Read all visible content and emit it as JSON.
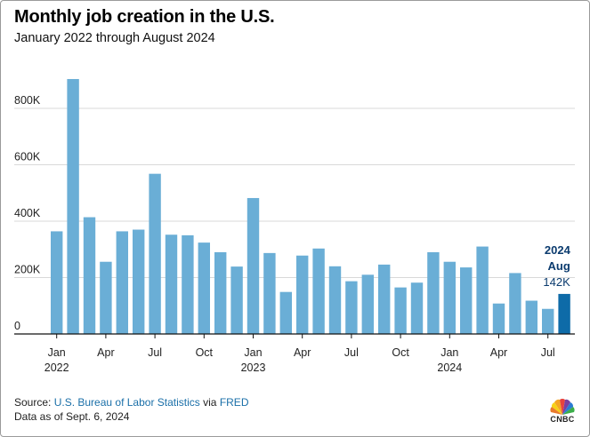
{
  "header": {
    "title": "Monthly job creation in the U.S.",
    "subtitle": "January 2022 through August 2024"
  },
  "footer": {
    "source_prefix": "Source: ",
    "source_bls": "U.S. Bureau of Labor Statistics",
    "source_via": " via ",
    "source_fred": "FRED",
    "data_as_of": "Data as of Sept. 6, 2024",
    "logo_text": "CNBC"
  },
  "colors": {
    "bar": "#6aaed6",
    "highlight": "#0e6ba8",
    "grid": "#d9d9d9",
    "link": "#1a6fa8"
  },
  "chart_data": {
    "type": "bar",
    "unit": "jobs (thousands)",
    "ylim": [
      0,
      900
    ],
    "yticks": [
      0,
      200,
      400,
      600,
      800
    ],
    "ytick_labels": [
      "0",
      "200K",
      "400K",
      "600K",
      "800K"
    ],
    "grid": true,
    "categories": [
      "2022-01",
      "2022-02",
      "2022-03",
      "2022-04",
      "2022-05",
      "2022-06",
      "2022-07",
      "2022-08",
      "2022-09",
      "2022-10",
      "2022-11",
      "2022-12",
      "2023-01",
      "2023-02",
      "2023-03",
      "2023-04",
      "2023-05",
      "2023-06",
      "2023-07",
      "2023-08",
      "2023-09",
      "2023-10",
      "2023-11",
      "2023-12",
      "2024-01",
      "2024-02",
      "2024-03",
      "2024-04",
      "2024-05",
      "2024-06",
      "2024-07",
      "2024-08"
    ],
    "values": [
      364,
      904,
      414,
      256,
      364,
      370,
      568,
      352,
      350,
      324,
      290,
      239,
      482,
      287,
      149,
      278,
      303,
      240,
      187,
      210,
      246,
      165,
      182,
      290,
      256,
      236,
      310,
      108,
      216,
      118,
      89,
      142
    ],
    "x_tick_labels": [
      {
        "index": 0,
        "month": "Jan",
        "year": "2022"
      },
      {
        "index": 3,
        "month": "Apr"
      },
      {
        "index": 6,
        "month": "Jul"
      },
      {
        "index": 9,
        "month": "Oct"
      },
      {
        "index": 12,
        "month": "Jan",
        "year": "2023"
      },
      {
        "index": 15,
        "month": "Apr"
      },
      {
        "index": 18,
        "month": "Jul"
      },
      {
        "index": 21,
        "month": "Oct"
      },
      {
        "index": 24,
        "month": "Jan",
        "year": "2024"
      },
      {
        "index": 27,
        "month": "Apr"
      },
      {
        "index": 30,
        "month": "Jul"
      }
    ],
    "highlight": {
      "index": 31,
      "year": "2024",
      "month": "Aug",
      "value_label": "142K"
    }
  }
}
